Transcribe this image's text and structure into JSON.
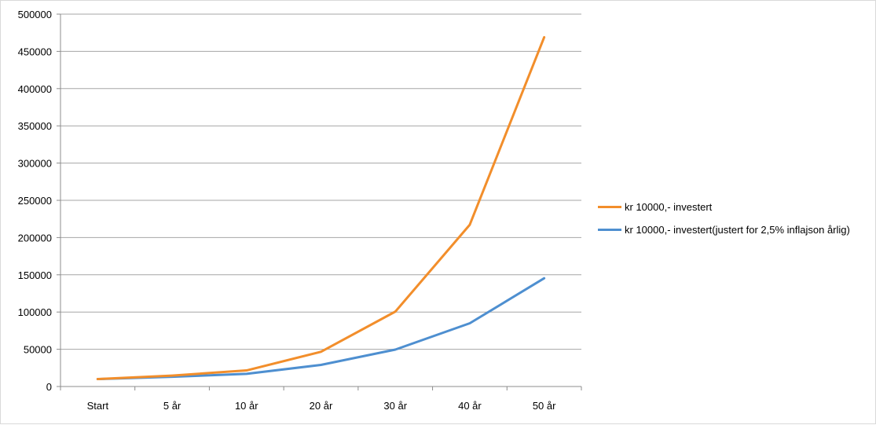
{
  "chart_data": {
    "type": "line",
    "title": "",
    "xlabel": "",
    "ylabel": "",
    "categories": [
      "Start",
      "5 år",
      "10 år",
      "20 år",
      "30 år",
      "40 år",
      "50 år"
    ],
    "ylim": [
      0,
      500000
    ],
    "yticks": [
      0,
      50000,
      100000,
      150000,
      200000,
      250000,
      300000,
      350000,
      400000,
      450000,
      500000
    ],
    "ytick_labels": [
      "0",
      "50000",
      "100000",
      "150000",
      "200000",
      "250000",
      "300000",
      "350000",
      "400000",
      "450000",
      "500000"
    ],
    "grid": true,
    "legend_position": "right",
    "series": [
      {
        "name": "kr 10000,- investert",
        "color": "#F28E2B",
        "values": [
          10000,
          14700,
          21600,
          46600,
          100600,
          217200,
          469000
        ]
      },
      {
        "name": "kr 10000,- investert(justert for 2,5% inflajson årlig)",
        "color": "#4E8FD0",
        "values": [
          10000,
          13000,
          17000,
          29000,
          49600,
          84900,
          145400
        ]
      }
    ]
  }
}
